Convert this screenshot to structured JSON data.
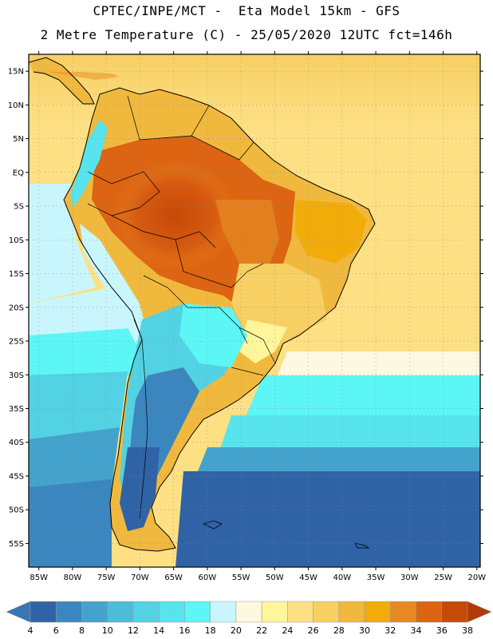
{
  "header": {
    "line1": "CPTEC/INPE/MCT -  Eta Model 15km - GFS",
    "line2": "2 Metre Temperature (C) - 25/05/2020 12UTC fct=146h"
  },
  "map": {
    "region": "South America",
    "lat_labels": [
      "15N",
      "10N",
      "5N",
      "EQ",
      "5S",
      "10S",
      "15S",
      "20S",
      "25S",
      "30S",
      "35S",
      "40S",
      "45S",
      "50S",
      "55S"
    ],
    "lat_values": [
      15,
      10,
      5,
      0,
      -5,
      -10,
      -15,
      -20,
      -25,
      -30,
      -35,
      -40,
      -45,
      -50,
      -55
    ],
    "lon_labels": [
      "85W",
      "80W",
      "75W",
      "70W",
      "65W",
      "60W",
      "55W",
      "50W",
      "45W",
      "40W",
      "35W",
      "30W",
      "25W",
      "20W"
    ],
    "lon_values": [
      -85,
      -80,
      -75,
      -70,
      -65,
      -60,
      -55,
      -50,
      -45,
      -40,
      -35,
      -30,
      -25,
      -20
    ],
    "lat_range": [
      -58.5,
      17.5
    ],
    "lon_range": [
      -86.5,
      -19.5
    ]
  },
  "colorbar": {
    "levels": [
      "4",
      "6",
      "8",
      "10",
      "12",
      "14",
      "16",
      "18",
      "20",
      "22",
      "24",
      "26",
      "28",
      "30",
      "32",
      "34",
      "36",
      "38"
    ],
    "colors": [
      "#3a75b5",
      "#2f63a6",
      "#3c86c0",
      "#44a3cc",
      "#4cbcd8",
      "#52d2e2",
      "#57e4ed",
      "#5cf6f6",
      "#c9f6fc",
      "#fff8e0",
      "#fff59a",
      "#fde084",
      "#f7cf63",
      "#f0b93e",
      "#f2ac0a",
      "#e78a22",
      "#dc6412",
      "#c54a08",
      "#b23a06"
    ],
    "unit": "C"
  }
}
